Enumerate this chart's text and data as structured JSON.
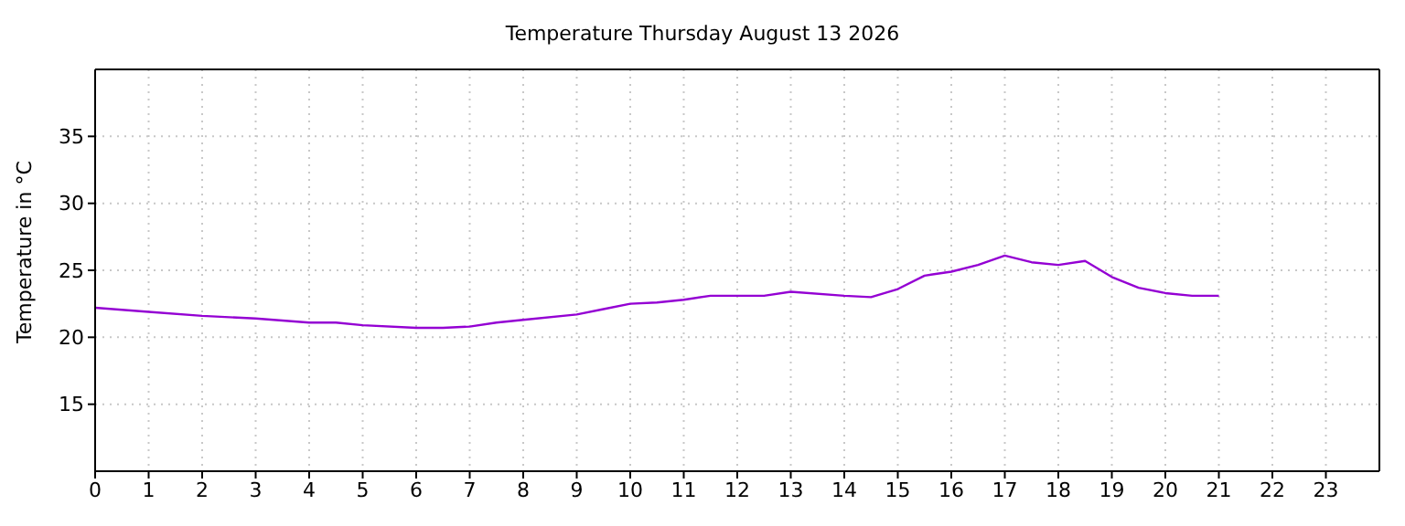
{
  "chart_data": {
    "type": "line",
    "title": "Temperature Thursday August 13 2026",
    "ylabel": "Temperature in °C",
    "x": [
      0,
      1,
      2,
      3,
      4,
      4.5,
      5,
      6,
      6.5,
      7,
      7.5,
      8,
      9,
      9.5,
      10,
      10.5,
      11,
      11.5,
      12,
      12.5,
      13,
      14,
      14.5,
      15,
      15.5,
      16,
      16.5,
      17,
      17.5,
      18,
      18.5,
      19,
      19.5,
      20,
      20.5,
      21
    ],
    "series": [
      {
        "color": "#9400d3",
        "values": [
          22.2,
          21.9,
          21.6,
          21.4,
          21.1,
          21.1,
          20.9,
          20.7,
          20.7,
          20.8,
          21.1,
          21.3,
          21.7,
          22.1,
          22.5,
          22.6,
          22.8,
          23.1,
          23.1,
          23.1,
          23.4,
          23.1,
          23.0,
          23.6,
          24.6,
          24.9,
          25.4,
          26.1,
          25.6,
          25.4,
          25.7,
          24.5,
          23.7,
          23.3,
          23.1,
          23.1
        ]
      }
    ],
    "xlim": [
      0,
      24
    ],
    "xticks": [
      0,
      1,
      2,
      3,
      4,
      5,
      6,
      7,
      8,
      9,
      10,
      11,
      12,
      13,
      14,
      15,
      16,
      17,
      18,
      19,
      20,
      21,
      22,
      23
    ],
    "ylim": [
      10,
      40
    ],
    "yticks": [
      15,
      20,
      25,
      30,
      35
    ],
    "grid": true,
    "marker": "none",
    "line_style": "solid"
  }
}
